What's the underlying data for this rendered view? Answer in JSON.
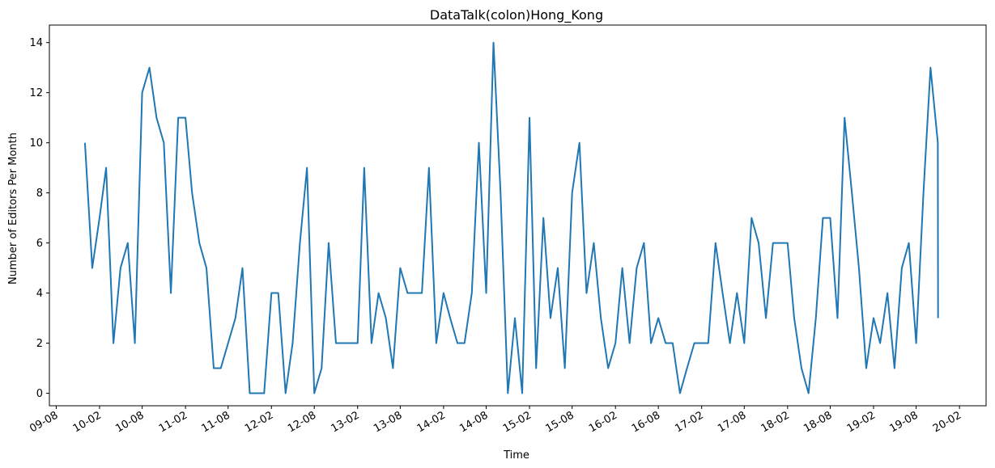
{
  "colors": {
    "line": "#1f77b4",
    "axis": "#000000",
    "background": "#ffffff"
  },
  "chart_data": {
    "type": "line",
    "title": "DataTalk(colon)Hong_Kong",
    "xlabel": "Time",
    "ylabel": "Number of Editors Per Month",
    "x_type": "date (YY-MM)",
    "grid": false,
    "legend": "none",
    "ylim": [
      -0.5,
      14.7
    ],
    "y_ticks": [
      0,
      2,
      4,
      6,
      8,
      10,
      12,
      14
    ],
    "xlim": [
      "2009-07-03",
      "2020-05-24"
    ],
    "x_ticks": [
      {
        "date": "2009-08-01",
        "label": "09-08"
      },
      {
        "date": "2010-02-01",
        "label": "10-02"
      },
      {
        "date": "2010-08-01",
        "label": "10-08"
      },
      {
        "date": "2011-02-01",
        "label": "11-02"
      },
      {
        "date": "2011-08-01",
        "label": "11-08"
      },
      {
        "date": "2012-02-01",
        "label": "12-02"
      },
      {
        "date": "2012-08-01",
        "label": "12-08"
      },
      {
        "date": "2013-02-01",
        "label": "13-02"
      },
      {
        "date": "2013-08-01",
        "label": "13-08"
      },
      {
        "date": "2014-02-01",
        "label": "14-02"
      },
      {
        "date": "2014-08-01",
        "label": "14-08"
      },
      {
        "date": "2015-02-01",
        "label": "15-02"
      },
      {
        "date": "2015-08-01",
        "label": "15-08"
      },
      {
        "date": "2016-02-01",
        "label": "16-02"
      },
      {
        "date": "2016-08-01",
        "label": "16-08"
      },
      {
        "date": "2017-02-01",
        "label": "17-02"
      },
      {
        "date": "2017-08-01",
        "label": "17-08"
      },
      {
        "date": "2018-02-01",
        "label": "18-02"
      },
      {
        "date": "2018-08-01",
        "label": "18-08"
      },
      {
        "date": "2019-02-01",
        "label": "19-02"
      },
      {
        "date": "2019-08-01",
        "label": "19-08"
      },
      {
        "date": "2020-02-01",
        "label": "20-02"
      }
    ],
    "series": [
      {
        "points": [
          [
            "2009-12-01",
            10
          ],
          [
            "2010-01-01",
            5
          ],
          [
            "2010-02-01",
            7
          ],
          [
            "2010-03-01",
            9
          ],
          [
            "2010-04-01",
            2
          ],
          [
            "2010-05-01",
            5
          ],
          [
            "2010-06-01",
            6
          ],
          [
            "2010-07-01",
            2
          ],
          [
            "2010-08-01",
            12
          ],
          [
            "2010-09-01",
            13
          ],
          [
            "2010-10-01",
            11
          ],
          [
            "2010-11-01",
            10
          ],
          [
            "2010-12-01",
            4
          ],
          [
            "2011-01-01",
            11
          ],
          [
            "2011-02-01",
            11
          ],
          [
            "2011-03-01",
            8
          ],
          [
            "2011-04-01",
            6
          ],
          [
            "2011-05-01",
            5
          ],
          [
            "2011-06-01",
            1
          ],
          [
            "2011-07-01",
            1
          ],
          [
            "2011-08-01",
            2
          ],
          [
            "2011-09-01",
            3
          ],
          [
            "2011-10-01",
            5
          ],
          [
            "2011-11-01",
            0
          ],
          [
            "2011-12-01",
            0
          ],
          [
            "2012-01-01",
            0
          ],
          [
            "2012-02-01",
            4
          ],
          [
            "2012-03-01",
            4
          ],
          [
            "2012-04-01",
            0
          ],
          [
            "2012-05-01",
            2
          ],
          [
            "2012-06-01",
            6
          ],
          [
            "2012-07-01",
            9
          ],
          [
            "2012-08-01",
            0
          ],
          [
            "2012-09-01",
            1
          ],
          [
            "2012-10-01",
            6
          ],
          [
            "2012-11-01",
            2
          ],
          [
            "2012-12-01",
            2
          ],
          [
            "2013-01-01",
            2
          ],
          [
            "2013-02-01",
            2
          ],
          [
            "2013-03-01",
            9
          ],
          [
            "2013-04-01",
            2
          ],
          [
            "2013-05-01",
            4
          ],
          [
            "2013-06-01",
            3
          ],
          [
            "2013-07-01",
            1
          ],
          [
            "2013-08-01",
            5
          ],
          [
            "2013-09-01",
            4
          ],
          [
            "2013-10-01",
            4
          ],
          [
            "2013-11-01",
            4
          ],
          [
            "2013-12-01",
            9
          ],
          [
            "2014-01-01",
            2
          ],
          [
            "2014-02-01",
            4
          ],
          [
            "2014-03-01",
            3
          ],
          [
            "2014-04-01",
            2
          ],
          [
            "2014-05-01",
            2
          ],
          [
            "2014-06-01",
            4
          ],
          [
            "2014-07-01",
            10
          ],
          [
            "2014-08-01",
            4
          ],
          [
            "2014-09-01",
            14
          ],
          [
            "2014-10-01",
            8
          ],
          [
            "2014-11-01",
            0
          ],
          [
            "2014-12-01",
            3
          ],
          [
            "2015-01-01",
            0
          ],
          [
            "2015-02-01",
            11
          ],
          [
            "2015-03-01",
            1
          ],
          [
            "2015-04-01",
            7
          ],
          [
            "2015-05-01",
            3
          ],
          [
            "2015-06-01",
            5
          ],
          [
            "2015-07-01",
            1
          ],
          [
            "2015-08-01",
            8
          ],
          [
            "2015-09-01",
            10
          ],
          [
            "2015-10-01",
            4
          ],
          [
            "2015-11-01",
            6
          ],
          [
            "2015-12-01",
            3
          ],
          [
            "2016-01-01",
            1
          ],
          [
            "2016-02-01",
            2
          ],
          [
            "2016-03-01",
            5
          ],
          [
            "2016-04-01",
            2
          ],
          [
            "2016-05-01",
            5
          ],
          [
            "2016-06-01",
            6
          ],
          [
            "2016-07-01",
            2
          ],
          [
            "2016-08-01",
            3
          ],
          [
            "2016-09-01",
            2
          ],
          [
            "2016-10-01",
            2
          ],
          [
            "2016-11-01",
            0
          ],
          [
            "2016-12-01",
            1
          ],
          [
            "2017-01-01",
            2
          ],
          [
            "2017-02-01",
            2
          ],
          [
            "2017-03-01",
            2
          ],
          [
            "2017-04-01",
            6
          ],
          [
            "2017-05-01",
            4
          ],
          [
            "2017-06-01",
            2
          ],
          [
            "2017-07-01",
            4
          ],
          [
            "2017-08-01",
            2
          ],
          [
            "2017-09-01",
            7
          ],
          [
            "2017-10-01",
            6
          ],
          [
            "2017-11-01",
            3
          ],
          [
            "2017-12-01",
            6
          ],
          [
            "2018-01-01",
            6
          ],
          [
            "2018-02-01",
            6
          ],
          [
            "2018-03-01",
            3
          ],
          [
            "2018-04-01",
            1
          ],
          [
            "2018-05-01",
            0
          ],
          [
            "2018-06-01",
            3
          ],
          [
            "2018-07-01",
            7
          ],
          [
            "2018-08-01",
            7
          ],
          [
            "2018-09-01",
            3
          ],
          [
            "2018-10-01",
            11
          ],
          [
            "2018-11-01",
            8
          ],
          [
            "2018-12-01",
            5
          ],
          [
            "2019-01-01",
            1
          ],
          [
            "2019-02-01",
            3
          ],
          [
            "2019-03-01",
            2
          ],
          [
            "2019-04-01",
            4
          ],
          [
            "2019-05-01",
            1
          ],
          [
            "2019-06-01",
            5
          ],
          [
            "2019-07-01",
            6
          ],
          [
            "2019-08-01",
            2
          ],
          [
            "2019-09-01",
            8
          ],
          [
            "2019-10-01",
            13
          ],
          [
            "2019-11-01",
            10
          ],
          [
            "2019-11-02",
            3
          ]
        ]
      }
    ]
  }
}
